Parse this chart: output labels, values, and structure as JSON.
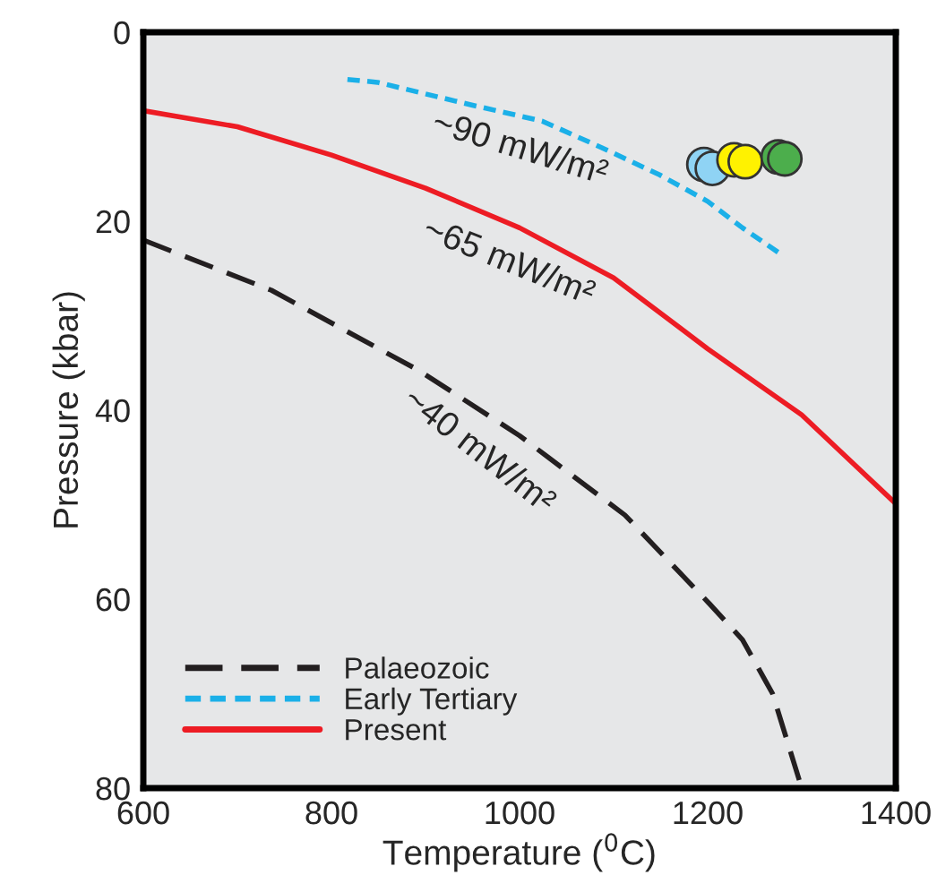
{
  "chart_data": {
    "type": "line",
    "xlabel": "Temperature ($^{0}$C)",
    "ylabel": "Pressure (kbar)",
    "xlim": [
      600,
      1400
    ],
    "ylim": [
      80,
      0
    ],
    "xticks": [
      600,
      800,
      1000,
      1200,
      1400
    ],
    "yticks": [
      0,
      20,
      40,
      60,
      80
    ],
    "grid": false,
    "legend": "bottom left",
    "marker": "none",
    "series": [
      {
        "name": "Palaeozoic",
        "color": "#231f20",
        "line_style": "dashed",
        "x": [
          600,
          736,
          893,
          1000,
          1112,
          1202,
          1237,
          1269,
          1300
        ],
        "values": [
          22,
          27.3,
          35.8,
          42.7,
          51.1,
          60.5,
          64.3,
          70,
          80
        ]
      },
      {
        "name": "Early Tertiary",
        "color": "#1bb0e8",
        "line_style": "dotted",
        "x": [
          817,
          849,
          949,
          1024,
          1087,
          1149,
          1200,
          1237,
          1278
        ],
        "values": [
          5.0,
          5.3,
          7.7,
          9.4,
          12.2,
          15.1,
          17.9,
          20.7,
          23.5
        ]
      },
      {
        "name": "Present",
        "color": "#ed1c24",
        "line_style": "solid",
        "x": [
          600,
          700,
          800,
          900,
          1000,
          1100,
          1200,
          1300,
          1400
        ],
        "values": [
          8.3,
          10,
          13,
          16.5,
          20.7,
          26,
          33.5,
          40.5,
          49.9
        ]
      },
      {
        "type": "scatter",
        "marker": "circle",
        "x": [
          1196,
          1205,
          1228,
          1240,
          1275,
          1282
        ],
        "values": [
          14.0,
          14.4,
          13.5,
          13.7,
          13.2,
          13.4
        ],
        "colors": [
          "#8fd3f4",
          "#8fd3f4",
          "#fff200",
          "#fff200",
          "#4cae4c",
          "#4cae4c"
        ]
      }
    ],
    "annotations": [
      "~90 mW/m²",
      "~65 mW/m²",
      "~40 mW/m²"
    ]
  }
}
